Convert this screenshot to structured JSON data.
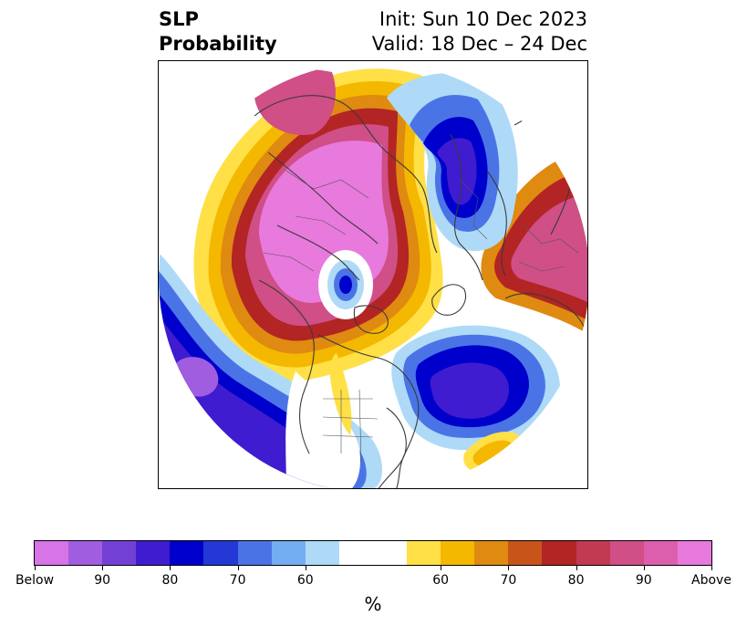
{
  "title": {
    "left_line1": "SLP",
    "left_line2": "Probability",
    "right_line1": "Init: Sun 10 Dec 2023",
    "right_line2": "Valid: 18 Dec – 24 Dec"
  },
  "colorbar": {
    "unit": "%",
    "below_colors": [
      "#d674e8",
      "#a15ddf",
      "#7340d6",
      "#3f1ccf",
      "#0000cc",
      "#2438d6",
      "#4a74e6",
      "#74aef2",
      "#aedaf7"
    ],
    "neutral_color": "#ffffff",
    "above_colors": [
      "#ffe046",
      "#f4b800",
      "#df8a10",
      "#c8541a",
      "#b32424",
      "#c23a52",
      "#cf4f86",
      "#dc5fae",
      "#e879dd"
    ],
    "tick_labels": [
      "Below",
      "90",
      "80",
      "70",
      "60",
      "60",
      "70",
      "80",
      "90",
      "Above"
    ]
  }
}
